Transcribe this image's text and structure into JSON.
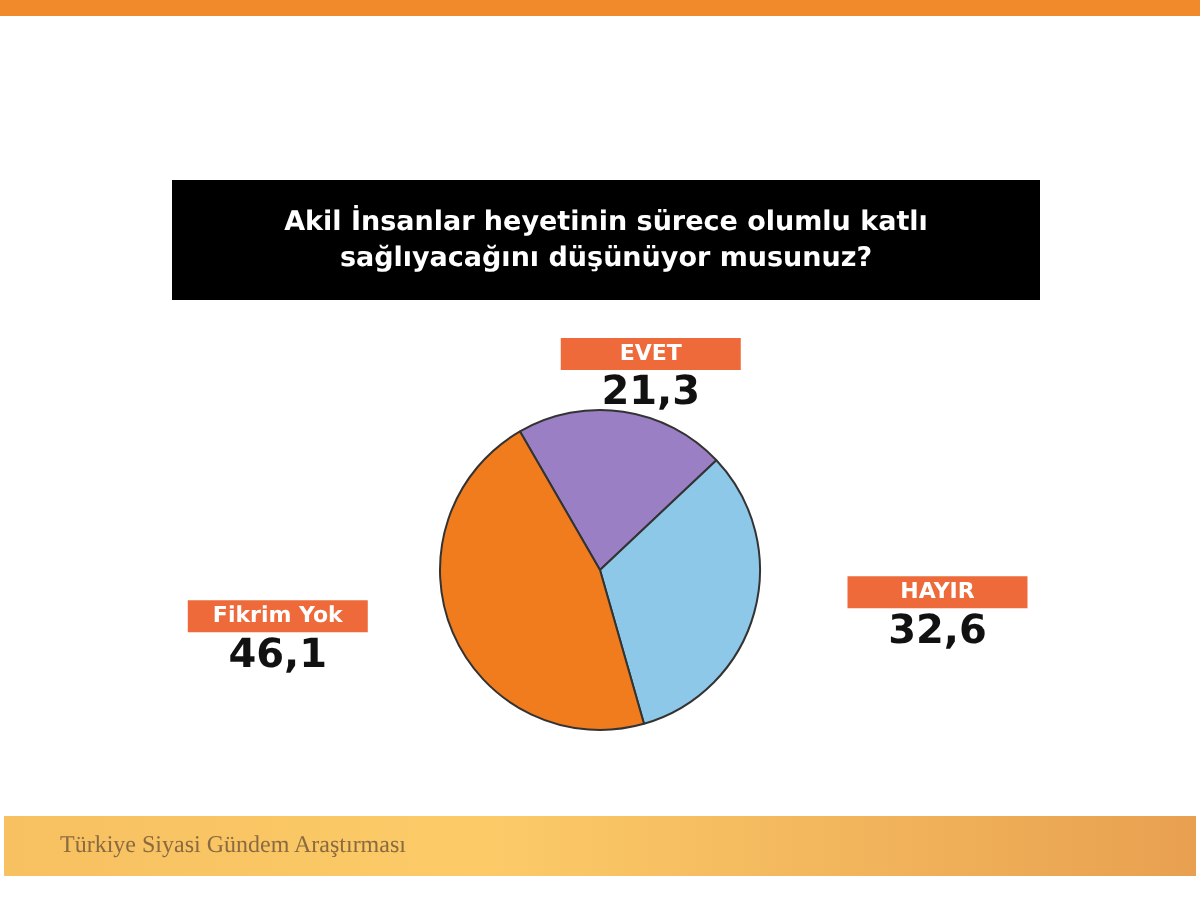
{
  "chart_data": {
    "type": "pie",
    "title": "Akil İnsanlar heyetinin sürece olumlu katlı sağlıyacağını düşünüyor musunuz?",
    "categories": [
      "EVET",
      "HAYIR",
      "Fikrim Yok"
    ],
    "values": [
      21.3,
      32.6,
      46.1
    ],
    "value_labels": [
      "21,3",
      "32,6",
      "46,1"
    ],
    "colors": [
      "#9b7fc4",
      "#8ec8e8",
      "#f07c1e"
    ],
    "annotations": [
      "Türkiye Siyasi Gündem Araştırması"
    ]
  }
}
